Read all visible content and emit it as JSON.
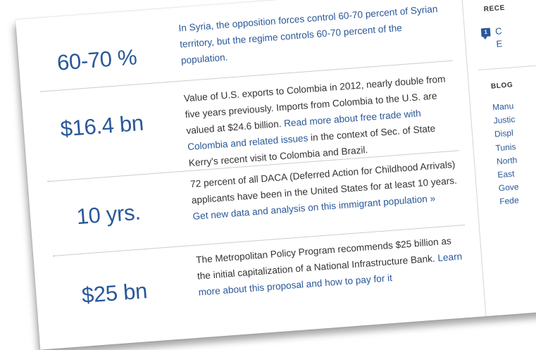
{
  "stats": [
    {
      "value": "60-70 %",
      "text": "In Syria, the opposition forces control 60-70 percent of Syrian territory, but the regime controls 60-70 percent of the population."
    },
    {
      "value": "$16.4 bn",
      "text_before": "Value of U.S. exports to Colombia in 2012, nearly double from five years previously. Imports from Colombia to the U.S. are valued at $24.6 billion. ",
      "link": "Read more about free trade with Colombia and related issues",
      "text_after": " in the context of Sec. of State Kerry's recent visit to Colombia and Brazil."
    },
    {
      "value": "10 yrs.",
      "text_before": "72 percent of all DACA (Deferred Action for Childhood Arrivals) applicants have been in the United States for at least 10 years. ",
      "link": "Get new data and analysis on this immigrant population »"
    },
    {
      "value": "$25 bn",
      "text_before": "The Metropolitan Policy Program recommends $25 billion as the initial capitalization of a National Infrastructure Bank. ",
      "link": "Learn more about this proposal and how to pay for it"
    }
  ],
  "sidebar": {
    "recent_heading": "RECE",
    "recent_badge": "1",
    "recent_line1": "C",
    "recent_line2": "E",
    "blogs_heading": "BLOG",
    "blogs": [
      "Manu",
      "Justic",
      "Displ",
      "Tunis",
      "North",
      "East",
      "Gove",
      "Fede"
    ]
  },
  "colors": {
    "accent": "#2a5898",
    "text": "#333333",
    "divider": "#9a9a9a"
  }
}
